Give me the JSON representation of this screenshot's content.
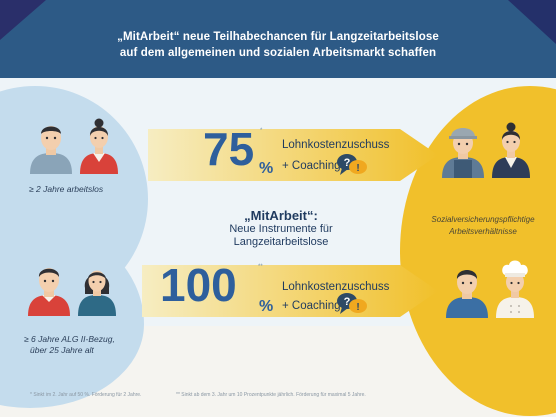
{
  "header": {
    "line1": "„MitArbeit“ neue Teilhabechancen für Langzeitarbeitslose",
    "line2": "auf dem allgemeinen und sozialen Arbeitsmarkt schaffen"
  },
  "top_row": {
    "percent_number": "75",
    "percent_sign": "%",
    "footnote_mark": "*",
    "subsidy_label": "Lohnkostenzuschuss",
    "coaching_label": "+ Coaching",
    "left_caption": "≥ 2 Jahre arbeitslos"
  },
  "bottom_row": {
    "percent_number": "100",
    "percent_sign": "%",
    "footnote_mark": "**",
    "subsidy_label": "Lohnkostenzuschuss",
    "coaching_label": "+ Coaching",
    "left_caption_line1": "≥ 6 Jahre ALG II-Bezug,",
    "left_caption_line2": "über 25 Jahre alt"
  },
  "center": {
    "title": "„MitArbeit“:",
    "line1": "Neue Instrumente für",
    "line2": "Langzeitarbeitslose"
  },
  "right": {
    "caption_line1": "Sozialversicherungspflichtige",
    "caption_line2": "Arbeitsverhältnisse"
  },
  "footnotes": {
    "f1": "* Sinkt im 2. Jahr auf 50 %. Förderung für 2 Jahre.",
    "f2": "** Sinkt ab dem 3. Jahr um 10 Prozentpunkte jährlich. Förderung für maximal 5 Jahre."
  },
  "colors": {
    "header_blue": "#2d5a86",
    "light_blue": "#c4dced",
    "yellow": "#f1c02b",
    "text_blue": "#2e5f9c"
  }
}
